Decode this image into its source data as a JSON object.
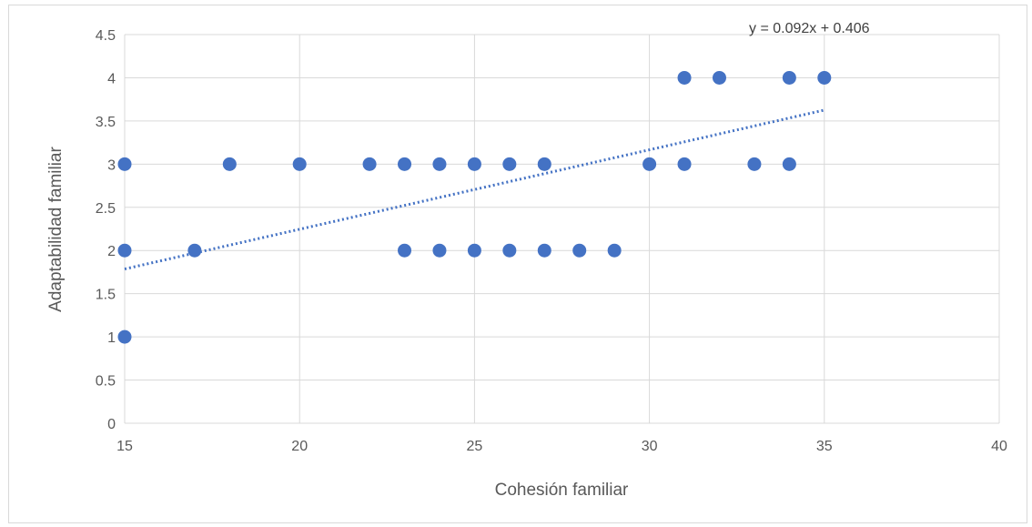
{
  "chart_data": {
    "type": "scatter",
    "xlabel": "Cohesión familiar",
    "ylabel": "Adaptabilidad  familiar",
    "xlim": [
      15,
      40
    ],
    "ylim": [
      0,
      4.5
    ],
    "x_ticks": [
      "15",
      "20",
      "25",
      "30",
      "35",
      "40"
    ],
    "y_ticks": [
      "0",
      "0.5",
      "1",
      "1.5",
      "2",
      "2.5",
      "3",
      "3.5",
      "4",
      "4.5"
    ],
    "grid": true,
    "legend": "none",
    "marker_color": "#4472c4",
    "trendline": {
      "label": "y = 0.092x + 0.406",
      "slope": 0.092,
      "intercept": 0.406,
      "x_range": [
        15,
        35
      ],
      "style": "dotted",
      "color": "#4472c4"
    },
    "points": [
      {
        "x": 15,
        "y": 3
      },
      {
        "x": 15,
        "y": 2
      },
      {
        "x": 15,
        "y": 1
      },
      {
        "x": 17,
        "y": 2
      },
      {
        "x": 18,
        "y": 3
      },
      {
        "x": 20,
        "y": 3
      },
      {
        "x": 22,
        "y": 3
      },
      {
        "x": 23,
        "y": 3
      },
      {
        "x": 24,
        "y": 3
      },
      {
        "x": 25,
        "y": 3
      },
      {
        "x": 26,
        "y": 3
      },
      {
        "x": 27,
        "y": 3
      },
      {
        "x": 23,
        "y": 2
      },
      {
        "x": 24,
        "y": 2
      },
      {
        "x": 25,
        "y": 2
      },
      {
        "x": 26,
        "y": 2
      },
      {
        "x": 27,
        "y": 2
      },
      {
        "x": 28,
        "y": 2
      },
      {
        "x": 29,
        "y": 2
      },
      {
        "x": 30,
        "y": 3
      },
      {
        "x": 31,
        "y": 3
      },
      {
        "x": 33,
        "y": 3
      },
      {
        "x": 34,
        "y": 3
      },
      {
        "x": 31,
        "y": 4
      },
      {
        "x": 32,
        "y": 4
      },
      {
        "x": 34,
        "y": 4
      },
      {
        "x": 35,
        "y": 4
      }
    ]
  }
}
